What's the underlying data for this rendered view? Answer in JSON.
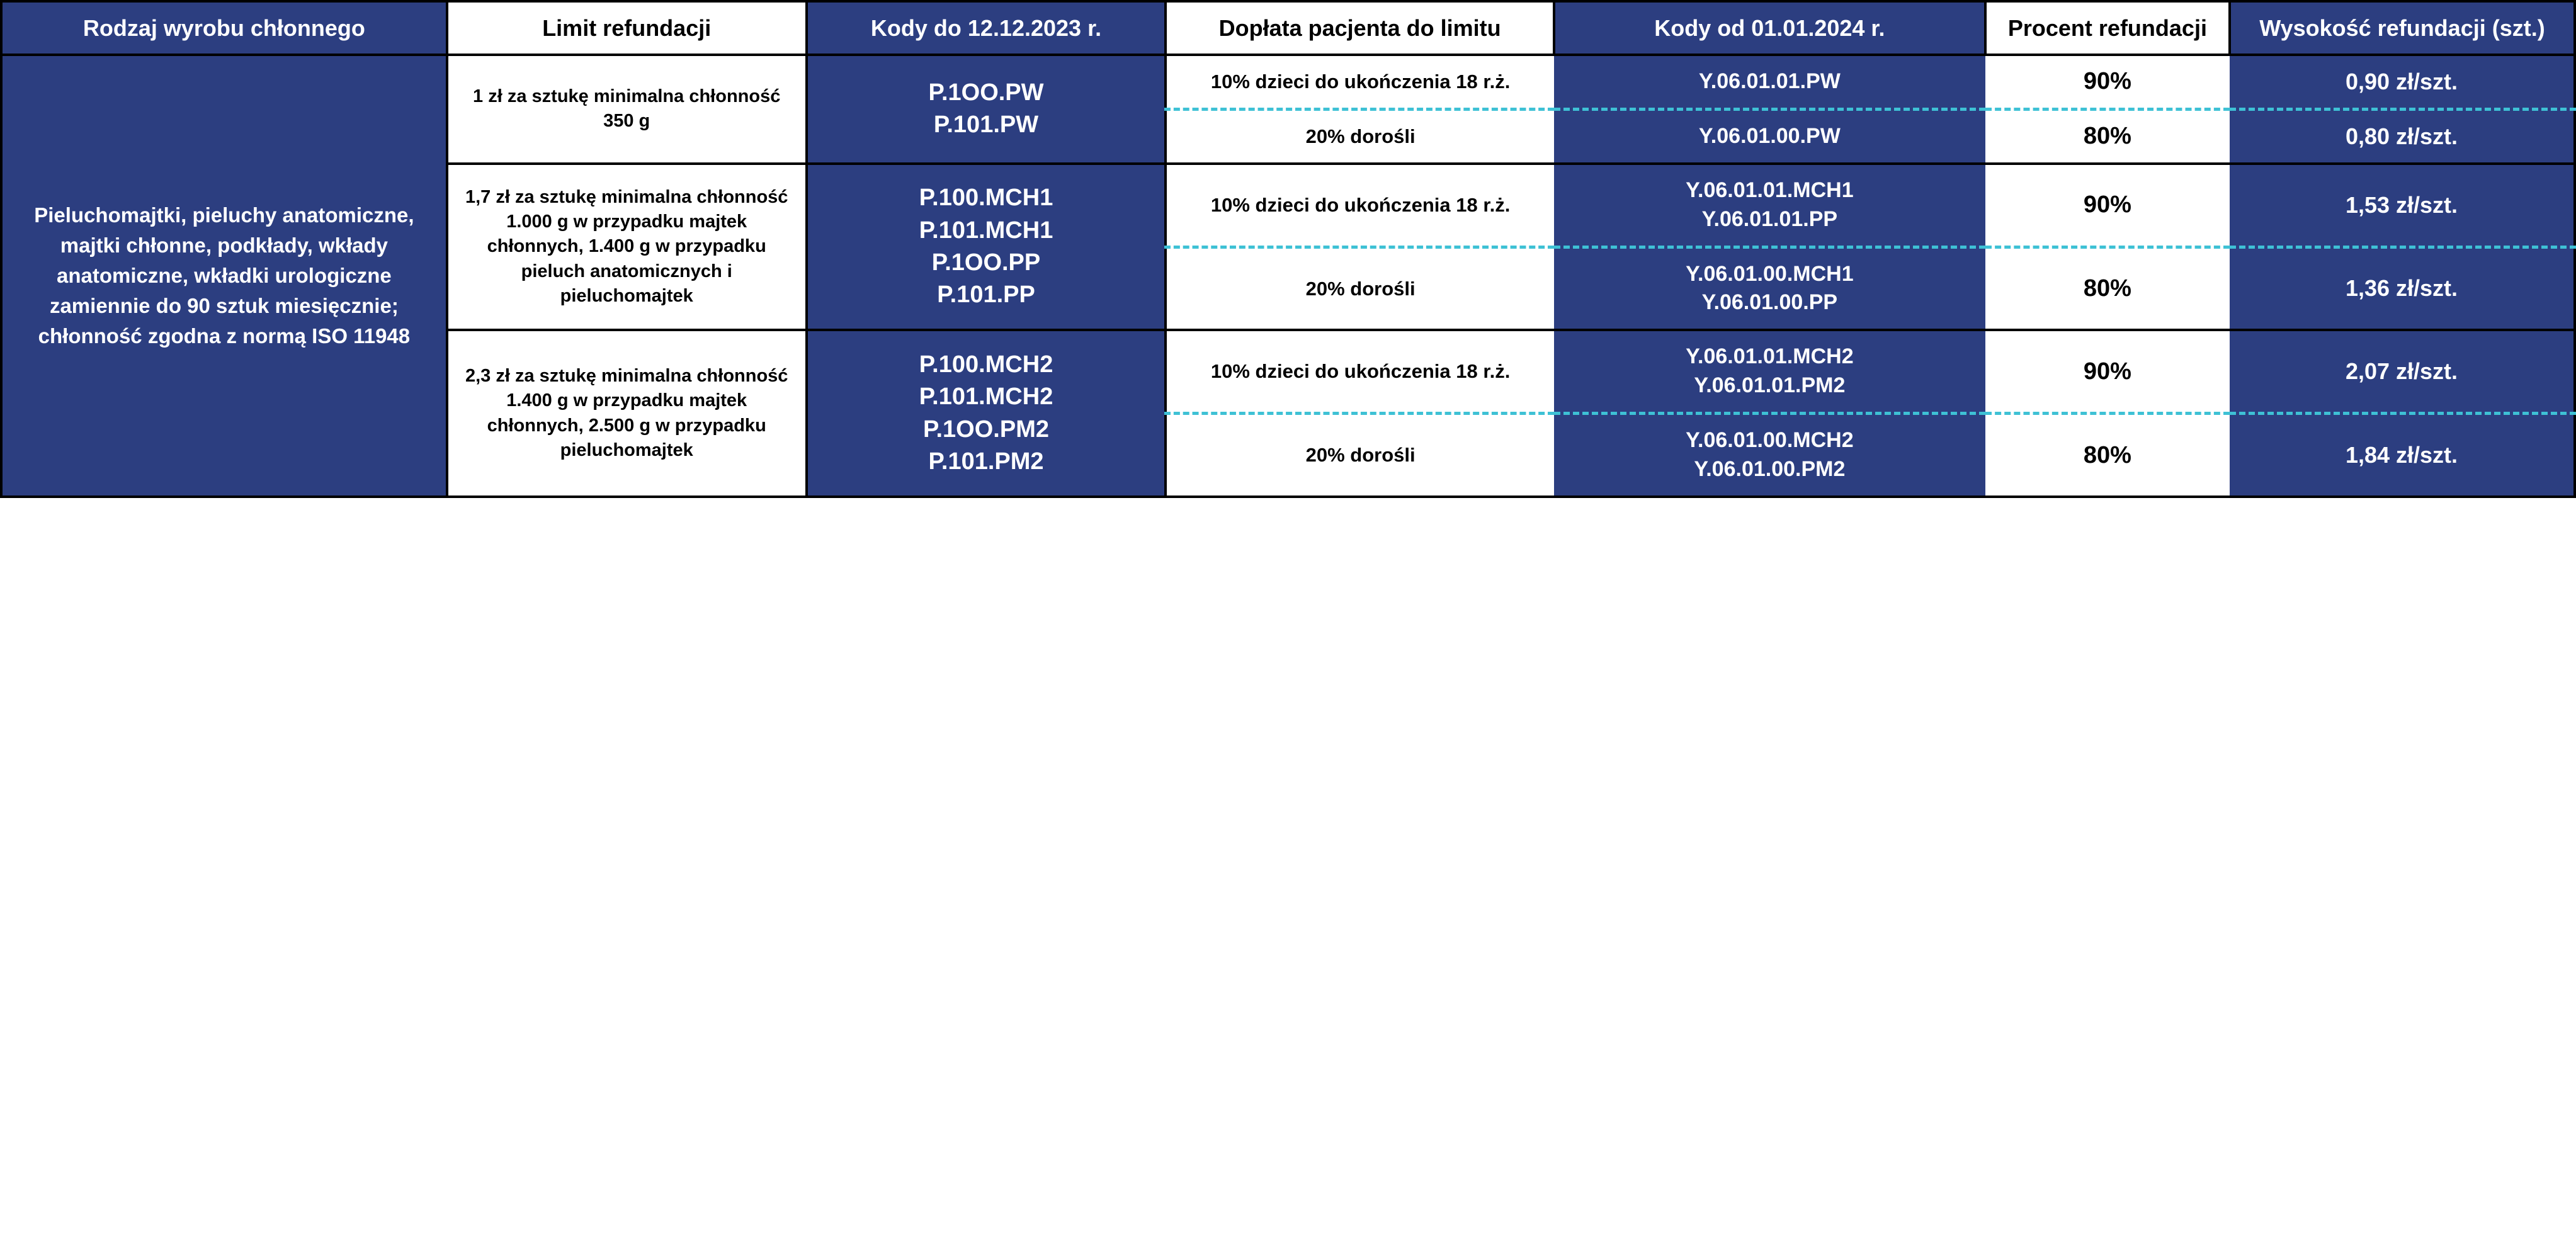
{
  "colors": {
    "navy": "#2c3e80",
    "white": "#ffffff",
    "black": "#000000",
    "dash": "#3ec1d5"
  },
  "headers": {
    "productType": "Rodzaj wyrobu chłonnego",
    "refundLimit": "Limit refundacji",
    "codesUntil": "Kody do 12.12.2023 r.",
    "patientSurcharge": "Dopłata pacjenta do limitu",
    "codesFrom": "Kody od 01.01.2024 r.",
    "refundPercent": "Procent refundacji",
    "refundAmount": "Wysokość refundacji (szt.)"
  },
  "productDescription": "Pieluchomajtki, pieluchy anatomiczne, majtki chłonne, podkłady, wkłady anatomiczne, wkładki urologiczne zamiennie do 90 sztuk miesięcznie; chłonność zgodna z normą ISO 11948",
  "tiers": [
    {
      "limit": "1 zł za sztukę minimalna chłonność 350 g",
      "oldCodes": [
        "P.1OO.PW",
        "P.101.PW"
      ],
      "rows": [
        {
          "surcharge": "10% dzieci do ukończenia 18 r.ż.",
          "newCodes": [
            "Y.06.01.01.PW"
          ],
          "percent": "90%",
          "amount": "0,90 zł/szt."
        },
        {
          "surcharge": "20% dorośli",
          "newCodes": [
            "Y.06.01.00.PW"
          ],
          "percent": "80%",
          "amount": "0,80 zł/szt."
        }
      ]
    },
    {
      "limit": "1,7 zł za sztukę minimalna chłonność 1.000 g w przypadku majtek chłonnych, 1.400 g w przypadku pieluch anatomicznych i pieluchomajtek",
      "oldCodes": [
        "P.100.MCH1",
        "P.101.MCH1",
        "P.1OO.PP",
        "P.101.PP"
      ],
      "rows": [
        {
          "surcharge": "10% dzieci do ukończenia 18 r.ż.",
          "newCodes": [
            "Y.06.01.01.MCH1",
            "Y.06.01.01.PP"
          ],
          "percent": "90%",
          "amount": "1,53 zł/szt."
        },
        {
          "surcharge": "20% dorośli",
          "newCodes": [
            "Y.06.01.00.MCH1",
            "Y.06.01.00.PP"
          ],
          "percent": "80%",
          "amount": "1,36 zł/szt."
        }
      ]
    },
    {
      "limit": "2,3 zł za sztukę minimalna chłonność 1.400 g w przypadku majtek chłonnych, 2.500 g w przypadku pieluchomajtek",
      "oldCodes": [
        "P.100.MCH2",
        "P.101.MCH2",
        "P.1OO.PM2",
        "P.101.PM2"
      ],
      "rows": [
        {
          "surcharge": "10% dzieci do ukończenia 18 r.ż.",
          "newCodes": [
            "Y.06.01.01.MCH2",
            "Y.06.01.01.PM2"
          ],
          "percent": "90%",
          "amount": "2,07 zł/szt."
        },
        {
          "surcharge": "20% dorośli",
          "newCodes": [
            "Y.06.01.00.MCH2",
            "Y.06.01.00.PM2"
          ],
          "percent": "80%",
          "amount": "1,84 zł/szt."
        }
      ]
    }
  ]
}
